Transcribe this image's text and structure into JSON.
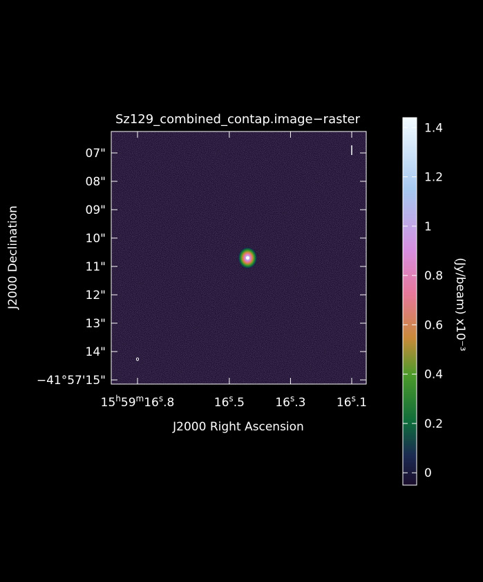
{
  "chart_data": {
    "type": "heatmap",
    "title": "Sz129_combined_contap.image−raster",
    "xlabel": "J2000 Right Ascension",
    "ylabel": "J2000 Declination",
    "colorbar_label": "(Jy/beam) x10⁻³",
    "colorbar_range": [
      -0.05,
      1.44
    ],
    "colorbar_ticks": [
      "0",
      "0.2",
      "0.4",
      "0.6",
      "0.8",
      "1",
      "1.2",
      "1.4"
    ],
    "colorbar_tick_values": [
      0,
      0.2,
      0.4,
      0.6,
      0.8,
      1.0,
      1.2,
      1.4
    ],
    "colormap": [
      "#1a0d2b",
      "#1b2a52",
      "#0e6b3b",
      "#4c9a2a",
      "#c98a3a",
      "#e6789a",
      "#d68fe0",
      "#a6c8f0",
      "#f2fbff"
    ],
    "x_ticks": [
      {
        "h": "15",
        "m": "59",
        "s": "16",
        "f": ".8",
        "label_parts": [
          "15",
          "h",
          "59",
          "m",
          "16",
          "s",
          ".8"
        ]
      },
      {
        "s": "16",
        "f": ".5"
      },
      {
        "s": "16",
        "f": ".3"
      },
      {
        "s": "16",
        "f": ".1"
      }
    ],
    "x_tick_values_sec": [
      16.8,
      16.5,
      16.3,
      16.1
    ],
    "y_ticks": [
      "07\"",
      "08\"",
      "09\"",
      "10\"",
      "11\"",
      "12\"",
      "13\"",
      "14\"",
      "−41°57'15\""
    ],
    "y_tick_values_arcsec": [
      7,
      8,
      9,
      10,
      11,
      12,
      13,
      14,
      15
    ],
    "source": {
      "ra_sec": 16.44,
      "dec_arcsec": 10.7,
      "peak": 1.44
    },
    "beam_marker": true
  }
}
